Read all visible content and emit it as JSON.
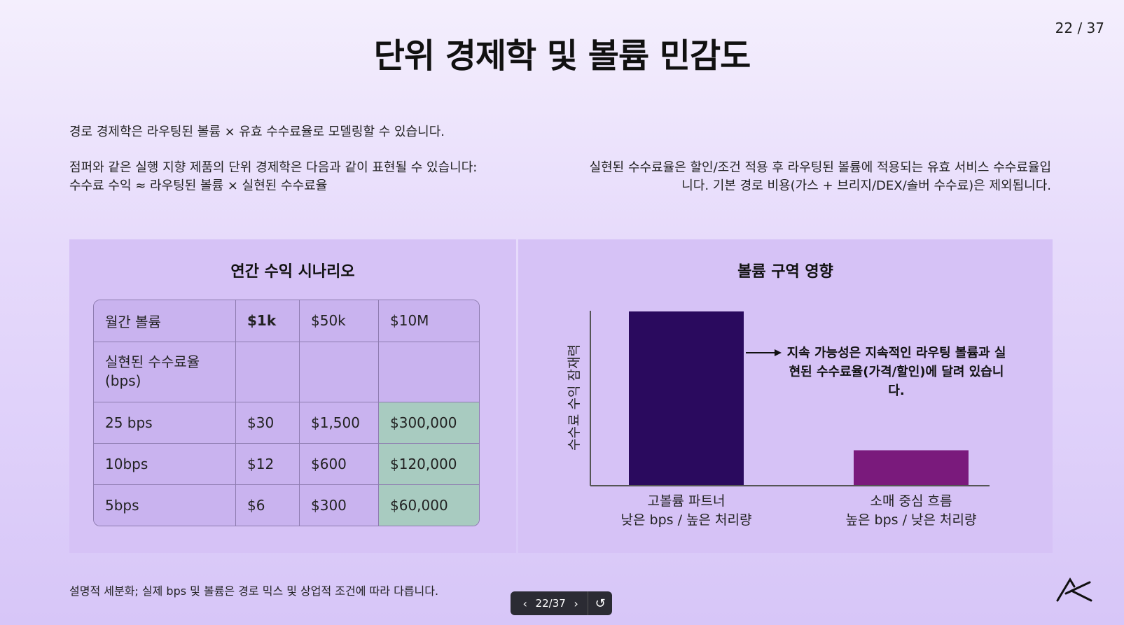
{
  "page_counter": "22 / 37",
  "title": "단위 경제학 및 볼륨 민감도",
  "intro": "경로 경제학은 라우팅된 볼륨 × 유효 수수료율로 모델링할 수 있습니다.",
  "left_text": {
    "line1": "점퍼와 같은 실행 지향 제품의 단위 경제학은 다음과 같이 표현될 수 있습니다:",
    "line2": "수수료 수익 ≈ 라우팅된 볼륨 × 실현된 수수료율"
  },
  "right_text": "실현된 수수료율은 할인/조건 적용 후 라우팅된 볼륨에 적용되는 유효 서비스 수수료율입니다. 기본 경로 비용(가스 + 브리지/DEX/솔버 수수료)은 제외됩니다.",
  "table_panel": {
    "title": "연간 수익 시나리오",
    "header": [
      "월간 볼륨",
      "$1k",
      "$50k",
      "$10M"
    ],
    "subheader": "실현된 수수료율 (bps)",
    "rows": [
      [
        "25 bps",
        "$30",
        "$1,500",
        "$300,000"
      ],
      [
        "10bps",
        "$12",
        "$600",
        "$120,000"
      ],
      [
        "5bps",
        "$6",
        "$300",
        "$60,000"
      ]
    ]
  },
  "chart_panel": {
    "title": "볼륨 구역 영향",
    "annotation": "지속 가능성은 지속적인 라우팅 볼륨과 실현된 수수료율(가격/할인)에 달려 있습니다.",
    "annotation_lines": [
      "지속 가능성은 지속적인 라우팅 볼륨과 실",
      "현된 수수료율(가격/할인)에 달려 있습니",
      "다."
    ]
  },
  "chart_data": {
    "type": "bar",
    "title": "볼륨 구역 영향",
    "ylabel": "수수료 수익 잠재력",
    "xlabel": "",
    "categories": [
      "고볼륨 파트너\n낮은 bps / 높은 처리량",
      "소매 중심 흐름\n높은 bps / 낮은 처리량"
    ],
    "category_lines": [
      [
        "고볼륨 파트너",
        "낮은 bps / 높은 처리량"
      ],
      [
        "소매 중심 흐름",
        "높은 bps / 낮은 처리량"
      ]
    ],
    "values": [
      1.0,
      0.2
    ],
    "colors": [
      "#2a0a5e",
      "#7a1a7c"
    ],
    "ylim": [
      0,
      1
    ],
    "grid": false
  },
  "footnote": "설명적 세분화; 실제 bps 및 볼륨은 경로 믹스 및 상업적 조건에 따라 다릅니다.",
  "nav": {
    "label": "22/37",
    "prev_icon": "chevron-left-icon",
    "next_icon": "chevron-right-icon",
    "refresh_icon": "refresh-icon"
  },
  "logo_icon": "brand-logo-icon"
}
